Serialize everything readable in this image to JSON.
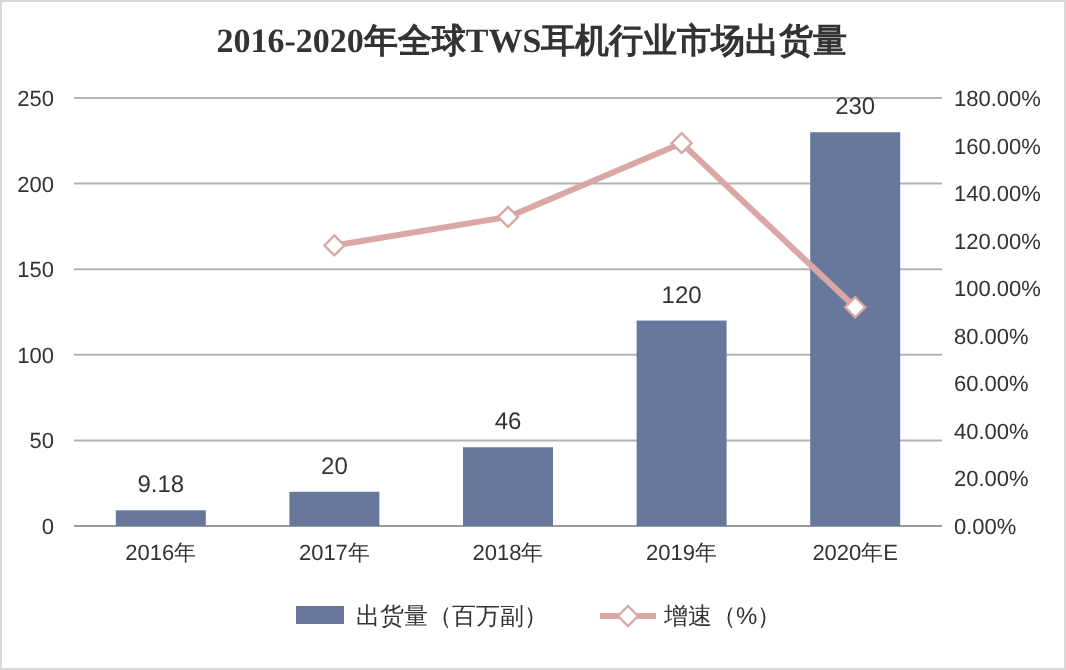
{
  "chart_data": {
    "type": "bar",
    "title": "2016-2020年全球TWS耳机行业市场出货量",
    "categories": [
      "2016年",
      "2017年",
      "2018年",
      "2019年",
      "2020年E"
    ],
    "series": [
      {
        "name": "出货量（百万副）",
        "color": "#68779c",
        "values": [
          9.18,
          20,
          46,
          120,
          230
        ],
        "value_labels": [
          "9.18",
          "20",
          "46",
          "120",
          "230"
        ]
      },
      {
        "name": "增速（%）",
        "type": "line",
        "axis": "y2",
        "color": "#d9a7a5",
        "marker": "diamond",
        "values": [
          null,
          118,
          130,
          161,
          92
        ]
      }
    ],
    "ylim": [
      0,
      250
    ],
    "yticks": [
      0,
      50,
      100,
      150,
      200,
      250
    ],
    "y2lim": [
      0,
      180
    ],
    "y2ticks": [
      {
        "value": 0,
        "label": "0.00%"
      },
      {
        "value": 20,
        "label": "20.00%"
      },
      {
        "value": 40,
        "label": "40.00%"
      },
      {
        "value": 60,
        "label": "60.00%"
      },
      {
        "value": 80,
        "label": "80.00%"
      },
      {
        "value": 100,
        "label": "100.00%"
      },
      {
        "value": 120,
        "label": "120.00%"
      },
      {
        "value": 140,
        "label": "140.00%"
      },
      {
        "value": 160,
        "label": "160.00%"
      },
      {
        "value": 180,
        "label": "180.00%"
      }
    ],
    "grid": "y",
    "legend": "bottom"
  }
}
